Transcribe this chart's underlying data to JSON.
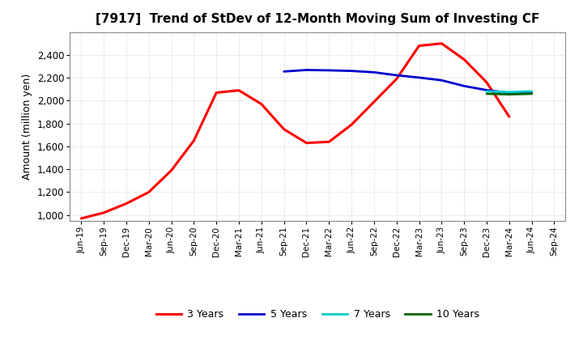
{
  "title": "[7917]  Trend of StDev of 12-Month Moving Sum of Investing CF",
  "ylabel": "Amount (million yen)",
  "ylim": [
    950,
    2600
  ],
  "yticks": [
    1000,
    1200,
    1400,
    1600,
    1800,
    2000,
    2200,
    2400
  ],
  "background_color": "#ffffff",
  "grid_color": "#bbbbbb",
  "series": {
    "3y": {
      "color": "#ff0000",
      "label": "3 Years",
      "points": [
        [
          "Jun-19",
          970
        ],
        [
          "Sep-19",
          1020
        ],
        [
          "Dec-19",
          1100
        ],
        [
          "Mar-20",
          1200
        ],
        [
          "Jun-20",
          1390
        ],
        [
          "Sep-20",
          1650
        ],
        [
          "Dec-20",
          2070
        ],
        [
          "Mar-21",
          2090
        ],
        [
          "Jun-21",
          1970
        ],
        [
          "Sep-21",
          1750
        ],
        [
          "Dec-21",
          1630
        ],
        [
          "Mar-22",
          1640
        ],
        [
          "Jun-22",
          1790
        ],
        [
          "Sep-22",
          1990
        ],
        [
          "Dec-22",
          2190
        ],
        [
          "Mar-23",
          2480
        ],
        [
          "Jun-23",
          2500
        ],
        [
          "Sep-23",
          2360
        ],
        [
          "Dec-23",
          2160
        ],
        [
          "Mar-24",
          1860
        ]
      ]
    },
    "5y": {
      "color": "#0000cc",
      "label": "5 Years",
      "points": [
        [
          "Sep-21",
          2255
        ],
        [
          "Dec-21",
          2268
        ],
        [
          "Mar-22",
          2265
        ],
        [
          "Jun-22",
          2260
        ],
        [
          "Sep-22",
          2248
        ],
        [
          "Dec-22",
          2222
        ],
        [
          "Mar-23",
          2202
        ],
        [
          "Jun-23",
          2178
        ],
        [
          "Sep-23",
          2128
        ],
        [
          "Dec-23",
          2092
        ],
        [
          "Mar-24",
          2068
        ],
        [
          "Jun-24",
          2068
        ]
      ]
    },
    "7y": {
      "color": "#00cccc",
      "label": "7 Years",
      "points": [
        [
          "Dec-23",
          2082
        ],
        [
          "Mar-24",
          2075
        ],
        [
          "Jun-24",
          2082
        ]
      ]
    },
    "10y": {
      "color": "#006600",
      "label": "10 Years",
      "points": [
        [
          "Dec-23",
          2060
        ],
        [
          "Mar-24",
          2055
        ],
        [
          "Jun-24",
          2060
        ]
      ]
    }
  },
  "xtick_labels": [
    "Jun-19",
    "Sep-19",
    "Dec-19",
    "Mar-20",
    "Jun-20",
    "Sep-20",
    "Dec-20",
    "Mar-21",
    "Jun-21",
    "Sep-21",
    "Dec-21",
    "Mar-22",
    "Jun-22",
    "Sep-22",
    "Dec-22",
    "Mar-23",
    "Jun-23",
    "Sep-23",
    "Dec-23",
    "Mar-24",
    "Jun-24",
    "Sep-24"
  ],
  "x_index_map": {
    "Jun-19": 0,
    "Sep-19": 1,
    "Dec-19": 2,
    "Mar-20": 3,
    "Jun-20": 4,
    "Sep-20": 5,
    "Dec-20": 6,
    "Mar-21": 7,
    "Jun-21": 8,
    "Sep-21": 9,
    "Dec-21": 10,
    "Mar-22": 11,
    "Jun-22": 12,
    "Sep-22": 13,
    "Dec-22": 14,
    "Mar-23": 15,
    "Jun-23": 16,
    "Sep-23": 17,
    "Dec-23": 18,
    "Mar-24": 19,
    "Jun-24": 20,
    "Sep-24": 21
  }
}
